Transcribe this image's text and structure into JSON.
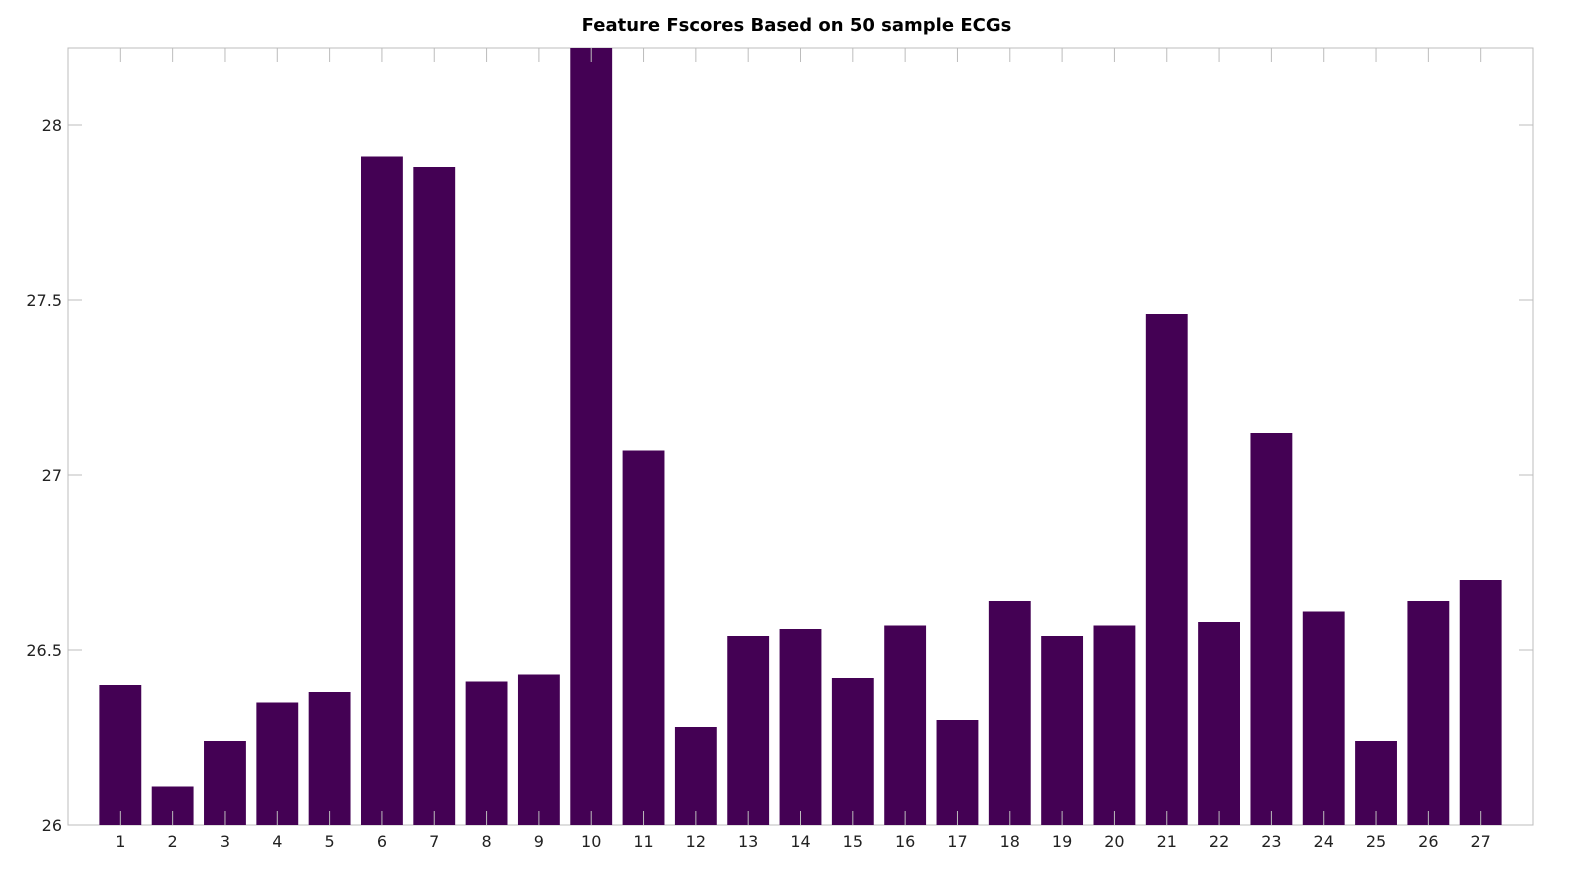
{
  "chart_data": {
    "type": "bar",
    "title": "Feature Fscores Based on 50 sample ECGs",
    "xlabel": "",
    "ylabel": "",
    "categories": [
      "1",
      "2",
      "3",
      "4",
      "5",
      "6",
      "7",
      "8",
      "9",
      "10",
      "11",
      "12",
      "13",
      "14",
      "15",
      "16",
      "17",
      "18",
      "19",
      "20",
      "21",
      "22",
      "23",
      "24",
      "25",
      "26",
      "27"
    ],
    "values": [
      26.4,
      26.11,
      26.24,
      26.35,
      26.38,
      27.91,
      27.88,
      26.41,
      26.43,
      28.22,
      27.07,
      26.28,
      26.54,
      26.56,
      26.42,
      26.57,
      26.3,
      26.64,
      26.54,
      26.57,
      27.46,
      26.58,
      27.12,
      26.61,
      26.24,
      26.64,
      26.7
    ],
    "ylim": [
      26,
      28.22
    ],
    "yticks": [
      "26",
      "26.5",
      "27",
      "27.5",
      "28"
    ],
    "ytick_values": [
      26,
      26.5,
      27,
      27.5,
      28
    ],
    "grid": false,
    "legend": "none",
    "bar_color": "#440154",
    "axis_color": "#bcbcbc"
  }
}
